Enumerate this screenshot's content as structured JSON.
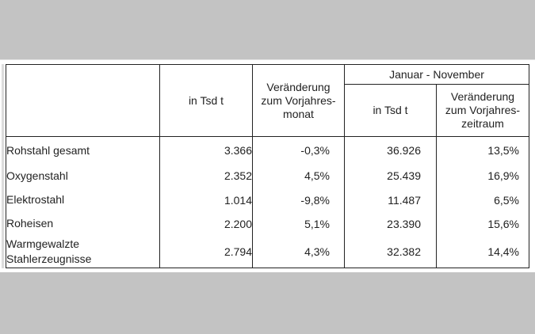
{
  "table": {
    "headers": {
      "col0": "",
      "col1": "in Tsd t",
      "col2_lines": [
        "Veränderung",
        "zum Vorjahres-",
        "monat"
      ],
      "group": "Januar - November",
      "col3": "in Tsd t",
      "col4_lines": [
        "Veränderung",
        "zum Vorjahres-",
        "zeitraum"
      ]
    },
    "rows": [
      {
        "label_lines": [
          "Rohstahl gesamt"
        ],
        "month_tsd_t": "3.366",
        "month_change": "-0,3%",
        "ytd_tsd_t": "36.926",
        "ytd_change": "13,5%"
      },
      {
        "label_lines": [
          "Oxygenstahl"
        ],
        "month_tsd_t": "2.352",
        "month_change": "4,5%",
        "ytd_tsd_t": "25.439",
        "ytd_change": "16,9%"
      },
      {
        "label_lines": [
          "Elektrostahl"
        ],
        "month_tsd_t": "1.014",
        "month_change": "-9,8%",
        "ytd_tsd_t": "11.487",
        "ytd_change": "6,5%"
      },
      {
        "label_lines": [
          "Roheisen"
        ],
        "month_tsd_t": "2.200",
        "month_change": "5,1%",
        "ytd_tsd_t": "23.390",
        "ytd_change": "15,6%"
      },
      {
        "label_lines": [
          "Warmgewalzte",
          "Stahlerzeugnisse"
        ],
        "month_tsd_t": "2.794",
        "month_change": "4,3%",
        "ytd_tsd_t": "32.382",
        "ytd_change": "14,4%"
      }
    ]
  },
  "colors": {
    "background": "#c3c3c3",
    "sheet": "#ffffff",
    "grid": "#222222",
    "text": "#222222"
  }
}
